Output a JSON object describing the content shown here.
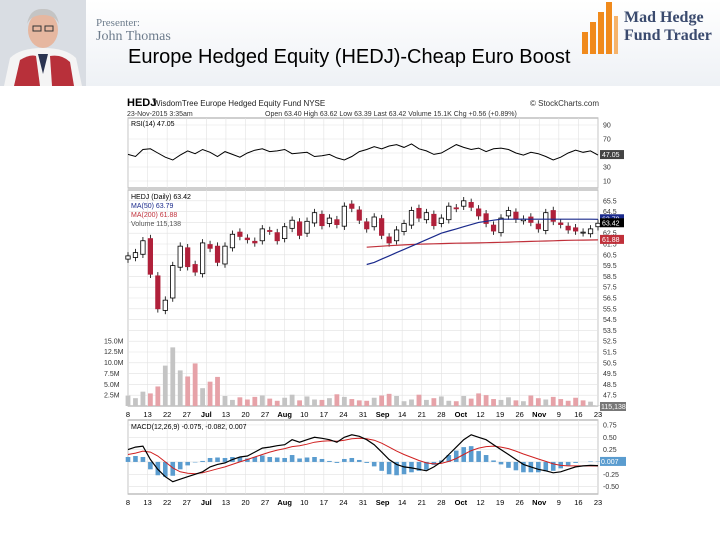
{
  "header": {
    "presenter_label": "Presenter:",
    "presenter_name": "John Thomas",
    "slide_title": "Europe Hedged Equity (HEDJ)-Cheap Euro Boost",
    "logo_line1": "Mad Hedge",
    "logo_line2": "Fund Trader",
    "brand_color": "#f08a1c"
  },
  "chart_data": {
    "type": "candlestick",
    "symbol": "HEDJ",
    "fund_name": "WisdomTree Europe Hedged Equity Fund",
    "exchange": "NYSE",
    "source": "© StockCharts.com",
    "date_stamp": "23-Nov-2015 3:35am",
    "quote": {
      "open": "Open 63.40",
      "high": "High 63.62",
      "low": "Low 63.39",
      "last": "Last 63.42",
      "volume": "Volume 15.1K",
      "change": "Chg +0.56 (+0.89%)"
    },
    "x_labels": [
      "8",
      "13",
      "22",
      "27",
      "Jul",
      "13",
      "20",
      "27",
      "Aug",
      "10",
      "17",
      "24",
      "31",
      "Sep",
      "14",
      "21",
      "28",
      "Oct",
      "12",
      "19",
      "26",
      "Nov",
      "9",
      "16",
      "23"
    ],
    "rsi": {
      "label": "RSI(14) 47.05",
      "last_value": "47.05",
      "ylim": [
        0,
        100
      ],
      "ticks": [
        "90",
        "70",
        "50",
        "30",
        "10"
      ],
      "values": [
        48,
        45,
        55,
        56,
        50,
        44,
        40,
        47,
        53,
        49,
        55,
        51,
        45,
        52,
        48,
        44,
        50,
        54,
        56,
        52,
        53,
        55,
        49,
        50,
        51,
        45,
        46,
        48,
        43,
        40,
        45,
        52,
        55,
        59,
        56,
        60,
        62,
        58,
        63,
        56,
        53,
        48,
        50,
        56,
        62,
        58,
        55,
        57,
        52,
        56,
        57,
        55,
        50,
        47,
        51,
        49,
        45,
        40,
        44,
        50,
        54,
        51,
        53,
        47
      ]
    },
    "price": {
      "label": "HEDJ (Daily) 63.42",
      "ma50_label": "MA(50) 63.79",
      "ma200_label": "MA(200) 61.88",
      "volume_label": "Volume 115,138",
      "last_label": "63.42",
      "ma50_last": "63.79",
      "ma200_last": "61.88",
      "ylim": [
        46.5,
        66.5
      ],
      "ticks": [
        "65.5",
        "64.5",
        "63.5",
        "62.5",
        "61.5",
        "60.5",
        "59.5",
        "58.5",
        "57.5",
        "56.5",
        "55.5",
        "54.5",
        "53.5",
        "52.5",
        "51.5",
        "50.5",
        "49.5",
        "48.5",
        "47.5"
      ],
      "closes": [
        60.4,
        60.7,
        61.8,
        58.7,
        55.5,
        56.3,
        59.5,
        61.3,
        59.4,
        58.9,
        61.6,
        61.1,
        59.8,
        61.3,
        62.4,
        62.2,
        61.9,
        61.6,
        62.9,
        62.7,
        61.8,
        63.1,
        63.7,
        62.3,
        63.6,
        64.4,
        63.2,
        63.9,
        63.3,
        65.0,
        64.8,
        63.7,
        62.9,
        64.0,
        62.3,
        61.6,
        62.8,
        63.4,
        64.6,
        63.9,
        64.4,
        63.2,
        63.9,
        65.0,
        64.8,
        65.5,
        64.9,
        64.1,
        63.4,
        62.7,
        63.9,
        64.6,
        63.8,
        63.8,
        63.5,
        62.9,
        64.4,
        63.6,
        63.3,
        62.8,
        62.7,
        62.6,
        62.9,
        63.42
      ],
      "ma50": [
        null,
        null,
        null,
        null,
        null,
        null,
        null,
        null,
        null,
        null,
        null,
        null,
        null,
        null,
        null,
        null,
        null,
        null,
        null,
        null,
        null,
        null,
        null,
        null,
        null,
        null,
        null,
        null,
        null,
        null,
        null,
        null,
        59.6,
        59.8,
        60.1,
        60.4,
        60.7,
        61.0,
        61.3,
        61.6,
        61.9,
        62.2,
        62.5,
        62.7,
        62.9,
        63.1,
        63.3,
        63.5,
        63.6,
        63.7,
        63.8,
        63.8,
        63.8,
        63.8,
        63.8,
        63.8,
        63.8,
        63.8,
        63.8,
        63.8,
        63.8,
        63.8,
        63.8,
        63.79
      ],
      "ma200": [
        null,
        null,
        null,
        null,
        null,
        null,
        null,
        null,
        null,
        null,
        null,
        null,
        null,
        null,
        null,
        null,
        null,
        null,
        null,
        null,
        null,
        null,
        null,
        null,
        null,
        null,
        null,
        null,
        null,
        null,
        null,
        null,
        61.2,
        61.25,
        61.3,
        61.34,
        61.38,
        61.42,
        61.45,
        61.48,
        61.5,
        61.52,
        61.54,
        61.56,
        61.57,
        61.58,
        61.59,
        61.6,
        61.62,
        61.64,
        61.66,
        61.68,
        61.7,
        61.72,
        61.74,
        61.76,
        61.78,
        61.8,
        61.82,
        61.84,
        61.85,
        61.86,
        61.87,
        61.88
      ]
    },
    "volume": {
      "ylim": [
        0,
        17.5
      ],
      "ticks": [
        "15.0M",
        "12.5M",
        "10.0M",
        "7.5M",
        "5.0M",
        "2.5M"
      ],
      "last_label": "115,138",
      "values": [
        2.4,
        1.8,
        3.3,
        2.9,
        4.5,
        9.3,
        13.5,
        8.2,
        6.8,
        9.8,
        4.1,
        5.6,
        6.7,
        2.3,
        1.4,
        2.0,
        1.5,
        2.1,
        2.4,
        1.7,
        1.2,
        1.9,
        2.6,
        1.3,
        2.2,
        1.5,
        1.4,
        1.8,
        2.7,
        2.1,
        1.6,
        1.3,
        1.2,
        1.9,
        2.4,
        2.8,
        2.3,
        1.1,
        1.5,
        2.6,
        1.4,
        1.8,
        2.2,
        1.2,
        1.1,
        2.3,
        1.7,
        2.9,
        2.5,
        1.6,
        1.4,
        2.0,
        1.3,
        1.1,
        2.4,
        1.8,
        1.5,
        2.1,
        1.6,
        1.2,
        1.9,
        1.3,
        1.0,
        0.1
      ]
    },
    "macd": {
      "label": "MACD(12,26,9) -0.075, -0.082, 0.007",
      "ylim": [
        -0.65,
        0.85
      ],
      "ticks": [
        "0.75",
        "0.50",
        "0.25",
        "0.00",
        "-0.25",
        "-0.50"
      ],
      "last_label": "0.007",
      "line": [
        0.25,
        0.3,
        0.32,
        0.05,
        -0.15,
        -0.3,
        -0.4,
        -0.35,
        -0.3,
        -0.25,
        -0.2,
        -0.1,
        -0.05,
        -0.02,
        0.05,
        0.1,
        0.12,
        0.2,
        0.28,
        0.3,
        0.33,
        0.35,
        0.45,
        0.4,
        0.45,
        0.5,
        0.48,
        0.45,
        0.4,
        0.5,
        0.55,
        0.52,
        0.45,
        0.35,
        0.2,
        0.05,
        -0.05,
        -0.1,
        -0.12,
        -0.15,
        -0.18,
        -0.1,
        0.0,
        0.15,
        0.3,
        0.45,
        0.55,
        0.5,
        0.45,
        0.35,
        0.25,
        0.15,
        0.05,
        -0.05,
        -0.1,
        -0.15,
        -0.18,
        -0.22,
        -0.2,
        -0.15,
        -0.1,
        -0.08,
        -0.07,
        -0.075
      ],
      "signal": [
        0.15,
        0.18,
        0.22,
        0.2,
        0.12,
        0.0,
        -0.12,
        -0.2,
        -0.23,
        -0.24,
        -0.22,
        -0.18,
        -0.14,
        -0.1,
        -0.05,
        0.0,
        0.05,
        0.1,
        0.15,
        0.2,
        0.24,
        0.27,
        0.31,
        0.33,
        0.36,
        0.4,
        0.42,
        0.43,
        0.42,
        0.44,
        0.47,
        0.48,
        0.47,
        0.44,
        0.38,
        0.3,
        0.22,
        0.15,
        0.09,
        0.03,
        -0.02,
        -0.04,
        -0.03,
        0.01,
        0.07,
        0.15,
        0.23,
        0.28,
        0.31,
        0.32,
        0.3,
        0.27,
        0.22,
        0.16,
        0.11,
        0.06,
        0.01,
        -0.04,
        -0.07,
        -0.08,
        -0.08,
        -0.08,
        -0.08,
        -0.082
      ]
    }
  }
}
